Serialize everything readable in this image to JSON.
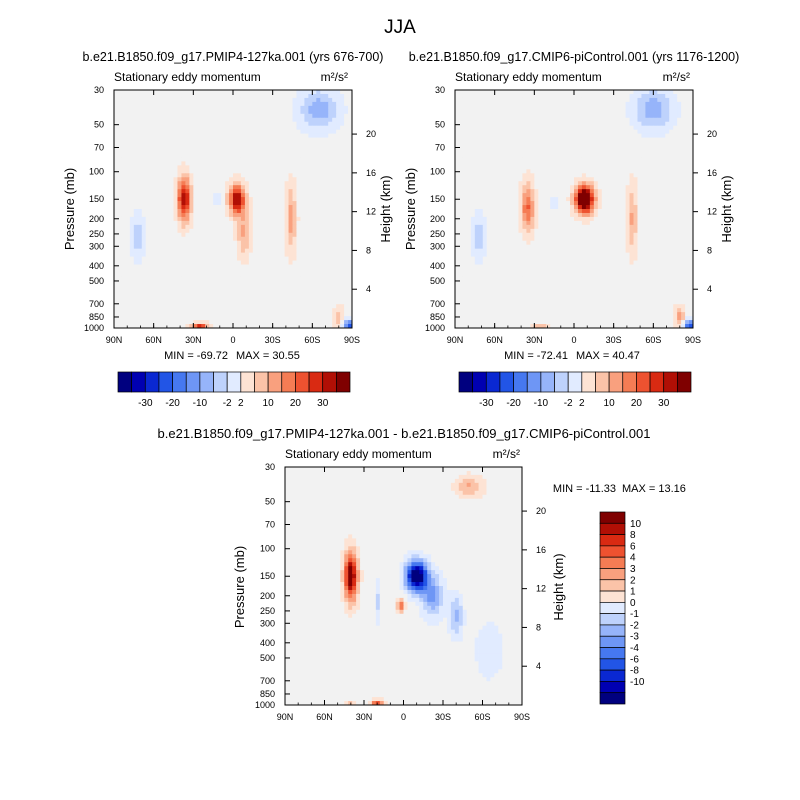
{
  "main_title": "JJA",
  "colors": {
    "neg": [
      "#00007f",
      "#0000b2",
      "#0a28d2",
      "#2255e6",
      "#4678f0",
      "#6e96f5",
      "#96b4fa",
      "#bed2fc",
      "#e1ebff"
    ],
    "zero": "#f2f2f2",
    "pos": [
      "#fde3d4",
      "#fbc3a8",
      "#f9a07e",
      "#f57c54",
      "#ee5230",
      "#d92a12",
      "#b10f05",
      "#7f0000"
    ]
  },
  "chart_data": [
    {
      "type": "heatmap",
      "title": "b.e21.B1850.f09_g17.PMIP4-127ka.001 (yrs 676-700)",
      "subtitle": "Stationary eddy momentum",
      "units": "m²/s²",
      "xlabel": "",
      "ylabel": "Pressure (mb)",
      "y2label": "Height (km)",
      "x_ticks": [
        "90N",
        "60N",
        "30N",
        "0",
        "30S",
        "60S",
        "90S"
      ],
      "y_ticks": [
        "30",
        "50",
        "70",
        "100",
        "150",
        "200",
        "250",
        "300",
        "400",
        "500",
        "700",
        "850",
        "1000"
      ],
      "y2_ticks": [
        "20",
        "16",
        "12",
        "8",
        "4"
      ],
      "min_label": "MIN = -69.72",
      "max_label": "MAX =  30.55",
      "xlim": [
        90,
        -90
      ],
      "ylim": [
        1000,
        30
      ],
      "colorbar": {
        "orientation": "horizontal",
        "labels": [
          "-30",
          "-20",
          "-10",
          "-2",
          "2",
          "10",
          "20",
          "30"
        ]
      },
      "scale": 30,
      "features": [
        {
          "x": 37,
          "p": 150,
          "dx": 5,
          "dp": 0.32,
          "amp": 26
        },
        {
          "x": -3,
          "p": 150,
          "dx": 6,
          "dp": 0.22,
          "amp": 27
        },
        {
          "x": -8,
          "p": 250,
          "dx": 5,
          "dp": 0.35,
          "amp": 9
        },
        {
          "x": 12,
          "p": 150,
          "dx": 2,
          "dp": 0.1,
          "amp": -8
        },
        {
          "x": -44,
          "p": 200,
          "dx": 4,
          "dp": 0.5,
          "amp": 10
        },
        {
          "x": -65,
          "p": 40,
          "dx": 15,
          "dp": 0.3,
          "amp": -10
        },
        {
          "x": -88,
          "p": 980,
          "dx": 5,
          "dp": 0.1,
          "amp": -18
        },
        {
          "x": 25,
          "p": 990,
          "dx": 6,
          "dp": 0.06,
          "amp": 22
        },
        {
          "x": 72,
          "p": 260,
          "dx": 6,
          "dp": 0.35,
          "amp": -6
        },
        {
          "x": -80,
          "p": 850,
          "dx": 4,
          "dp": 0.15,
          "amp": 8
        }
      ]
    },
    {
      "type": "heatmap",
      "title": "b.e21.B1850.f09_g17.CMIP6-piControl.001 (yrs 1176-1200)",
      "subtitle": "Stationary eddy momentum",
      "units": "m²/s²",
      "xlabel": "",
      "ylabel": "Pressure (mb)",
      "y2label": "Height (km)",
      "x_ticks": [
        "90N",
        "60N",
        "30N",
        "0",
        "30S",
        "60S",
        "90S"
      ],
      "y_ticks": [
        "30",
        "50",
        "70",
        "100",
        "150",
        "200",
        "250",
        "300",
        "400",
        "500",
        "700",
        "850",
        "1000"
      ],
      "y2_ticks": [
        "20",
        "16",
        "12",
        "8",
        "4"
      ],
      "min_label": "MIN = -72.41",
      "max_label": "MAX =  40.47",
      "xlim": [
        90,
        -90
      ],
      "ylim": [
        1000,
        30
      ],
      "colorbar": {
        "orientation": "horizontal",
        "labels": [
          "-30",
          "-20",
          "-10",
          "-2",
          "2",
          "10",
          "20",
          "30"
        ]
      },
      "scale": 30,
      "features": [
        {
          "x": 35,
          "p": 170,
          "dx": 5,
          "dp": 0.35,
          "amp": 16
        },
        {
          "x": -8,
          "p": 150,
          "dx": 7,
          "dp": 0.2,
          "amp": 38
        },
        {
          "x": 15,
          "p": 160,
          "dx": 2,
          "dp": 0.1,
          "amp": -6
        },
        {
          "x": -44,
          "p": 200,
          "dx": 4,
          "dp": 0.5,
          "amp": 9
        },
        {
          "x": -60,
          "p": 40,
          "dx": 15,
          "dp": 0.3,
          "amp": -10
        },
        {
          "x": -88,
          "p": 980,
          "dx": 5,
          "dp": 0.1,
          "amp": -20
        },
        {
          "x": 25,
          "p": 990,
          "dx": 6,
          "dp": 0.06,
          "amp": 8
        },
        {
          "x": 72,
          "p": 260,
          "dx": 6,
          "dp": 0.35,
          "amp": -6
        },
        {
          "x": -80,
          "p": 850,
          "dx": 4,
          "dp": 0.15,
          "amp": 10
        }
      ]
    },
    {
      "type": "heatmap",
      "title": "b.e21.B1850.f09_g17.PMIP4-127ka.001 - b.e21.B1850.f09_g17.CMIP6-piControl.001",
      "subtitle": "Stationary eddy momentum",
      "units": "m²/s²",
      "xlabel": "",
      "ylabel": "Pressure (mb)",
      "y2label": "Height (km)",
      "x_ticks": [
        "90N",
        "60N",
        "30N",
        "0",
        "30S",
        "60S",
        "90S"
      ],
      "y_ticks": [
        "30",
        "50",
        "70",
        "100",
        "150",
        "200",
        "250",
        "300",
        "400",
        "500",
        "700",
        "850",
        "1000"
      ],
      "y2_ticks": [
        "20",
        "16",
        "12",
        "8",
        "4"
      ],
      "min_label": "MIN = -11.33",
      "max_label": "MAX =  13.16",
      "xlim": [
        90,
        -90
      ],
      "ylim": [
        1000,
        30
      ],
      "colorbar": {
        "orientation": "vertical",
        "labels": [
          "10",
          "8",
          "6",
          "4",
          "3",
          "2",
          "1",
          "0",
          "-1",
          "-2",
          "-3",
          "-4",
          "-6",
          "-8",
          "-10"
        ]
      },
      "scale": 10,
      "features": [
        {
          "x": 40,
          "p": 150,
          "dx": 5,
          "dp": 0.35,
          "amp": 10
        },
        {
          "x": -10,
          "p": 150,
          "dx": 8,
          "dp": 0.22,
          "amp": -11
        },
        {
          "x": -22,
          "p": 200,
          "dx": 8,
          "dp": 0.3,
          "amp": -4
        },
        {
          "x": -40,
          "p": 270,
          "dx": 5,
          "dp": 0.3,
          "amp": -3
        },
        {
          "x": 2,
          "p": 230,
          "dx": 3,
          "dp": 0.1,
          "amp": 5
        },
        {
          "x": 20,
          "p": 220,
          "dx": 2,
          "dp": 0.3,
          "amp": -2
        },
        {
          "x": -50,
          "p": 40,
          "dx": 10,
          "dp": 0.15,
          "amp": 3
        },
        {
          "x": 20,
          "p": 990,
          "dx": 5,
          "dp": 0.06,
          "amp": 6
        },
        {
          "x": 40,
          "p": 980,
          "dx": 4,
          "dp": 0.05,
          "amp": 2
        },
        {
          "x": -65,
          "p": 450,
          "dx": 10,
          "dp": 0.4,
          "amp": -1.5
        }
      ]
    }
  ]
}
